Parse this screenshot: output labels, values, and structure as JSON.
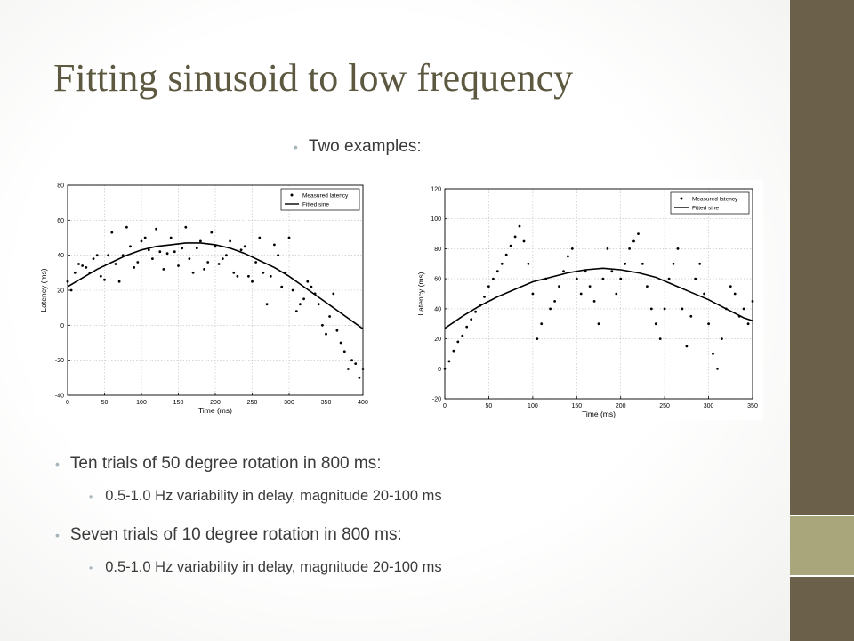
{
  "slide": {
    "title": "Fitting sinusoid to low frequency",
    "intro_bullet": "Two examples:",
    "bullets": [
      {
        "text": "Ten trials of 50 degree rotation in 800 ms:",
        "sub": "0.5-1.0 Hz variability in delay, magnitude 20-100 ms"
      },
      {
        "text": "Seven trials of 10 degree rotation in 800 ms:",
        "sub": "0.5-1.0 Hz variability in delay, magnitude 20-100 ms"
      }
    ]
  },
  "colors": {
    "title": "#5d5840",
    "sidebar": "#6b6049",
    "accent": "#a8a67a",
    "bullet": "#a5b4ba"
  },
  "chart_data": [
    {
      "type": "scatter",
      "xlabel": "Time (ms)",
      "ylabel": "Latency (ms)",
      "xlim": [
        0,
        400
      ],
      "ylim": [
        -40,
        80
      ],
      "xticks": [
        0,
        50,
        100,
        150,
        200,
        250,
        300,
        350,
        400
      ],
      "yticks": [
        -40,
        -20,
        0,
        20,
        40,
        60,
        80
      ],
      "grid": true,
      "legend": "top-right",
      "series": [
        {
          "name": "Measured latency",
          "style": "dots",
          "x": [
            0,
            5,
            10,
            15,
            20,
            25,
            30,
            35,
            40,
            45,
            50,
            55,
            60,
            65,
            70,
            75,
            80,
            85,
            90,
            95,
            100,
            105,
            110,
            115,
            120,
            125,
            130,
            135,
            140,
            145,
            150,
            155,
            160,
            165,
            170,
            175,
            180,
            185,
            190,
            195,
            200,
            205,
            210,
            215,
            220,
            225,
            230,
            235,
            240,
            245,
            250,
            255,
            260,
            265,
            270,
            275,
            280,
            285,
            290,
            295,
            300,
            305,
            310,
            315,
            320,
            325,
            330,
            335,
            340,
            345,
            350,
            355,
            360,
            365,
            370,
            375,
            380,
            385,
            390,
            395,
            400
          ],
          "y": [
            25,
            20,
            30,
            35,
            34,
            33,
            30,
            38,
            40,
            28,
            26,
            40,
            53,
            35,
            25,
            40,
            56,
            45,
            33,
            36,
            48,
            50,
            43,
            38,
            55,
            42,
            32,
            41,
            50,
            42,
            34,
            44,
            56,
            38,
            30,
            44,
            48,
            32,
            36,
            53,
            45,
            35,
            38,
            40,
            48,
            30,
            28,
            43,
            45,
            28,
            25,
            36,
            50,
            30,
            12,
            28,
            46,
            40,
            22,
            30,
            50,
            20,
            8,
            12,
            15,
            25,
            22,
            18,
            12,
            0,
            -5,
            5,
            18,
            -3,
            -10,
            -15,
            -25,
            -20,
            -22,
            -30,
            -25
          ]
        },
        {
          "name": "Fitted sine",
          "style": "line",
          "x": [
            0,
            20,
            40,
            60,
            80,
            100,
            120,
            140,
            160,
            180,
            200,
            220,
            240,
            260,
            280,
            300,
            320,
            340,
            360,
            380,
            400
          ],
          "y": [
            22,
            27,
            32,
            36,
            40,
            43,
            45,
            46,
            47,
            47,
            46,
            44,
            41,
            37,
            33,
            28,
            22,
            16,
            10,
            4,
            -2
          ]
        }
      ]
    },
    {
      "type": "scatter",
      "xlabel": "Time (ms)",
      "ylabel": "Latency (ms)",
      "xlim": [
        0,
        350
      ],
      "ylim": [
        -20,
        120
      ],
      "xticks": [
        0,
        50,
        100,
        150,
        200,
        250,
        300,
        350
      ],
      "yticks": [
        -20,
        0,
        20,
        40,
        60,
        80,
        100,
        120
      ],
      "grid": true,
      "legend": "top-right",
      "series": [
        {
          "name": "Measured latency",
          "style": "dots",
          "x": [
            0,
            5,
            10,
            15,
            20,
            25,
            30,
            35,
            40,
            45,
            50,
            55,
            60,
            65,
            70,
            75,
            80,
            85,
            90,
            95,
            100,
            105,
            110,
            115,
            120,
            125,
            130,
            135,
            140,
            145,
            150,
            155,
            160,
            165,
            170,
            175,
            180,
            185,
            190,
            195,
            200,
            205,
            210,
            215,
            220,
            225,
            230,
            235,
            240,
            245,
            250,
            255,
            260,
            265,
            270,
            275,
            280,
            285,
            290,
            295,
            300,
            305,
            310,
            315,
            320,
            325,
            330,
            335,
            340,
            345,
            350
          ],
          "y": [
            0,
            5,
            12,
            18,
            22,
            28,
            33,
            38,
            42,
            48,
            55,
            60,
            65,
            70,
            76,
            82,
            88,
            95,
            85,
            70,
            50,
            20,
            30,
            60,
            40,
            45,
            55,
            65,
            75,
            80,
            60,
            50,
            65,
            55,
            45,
            30,
            60,
            80,
            65,
            50,
            60,
            70,
            80,
            85,
            90,
            70,
            55,
            40,
            30,
            20,
            40,
            60,
            70,
            80,
            40,
            15,
            35,
            60,
            70,
            50,
            30,
            10,
            0,
            20,
            40,
            55,
            50,
            35,
            40,
            30,
            45
          ]
        },
        {
          "name": "Fitted sine",
          "style": "line",
          "x": [
            0,
            20,
            40,
            60,
            80,
            100,
            120,
            140,
            160,
            180,
            200,
            220,
            240,
            260,
            280,
            300,
            320,
            340,
            350
          ],
          "y": [
            27,
            35,
            42,
            48,
            53,
            58,
            61,
            64,
            66,
            67,
            66,
            64,
            61,
            56,
            51,
            46,
            40,
            34,
            32
          ]
        }
      ]
    }
  ]
}
